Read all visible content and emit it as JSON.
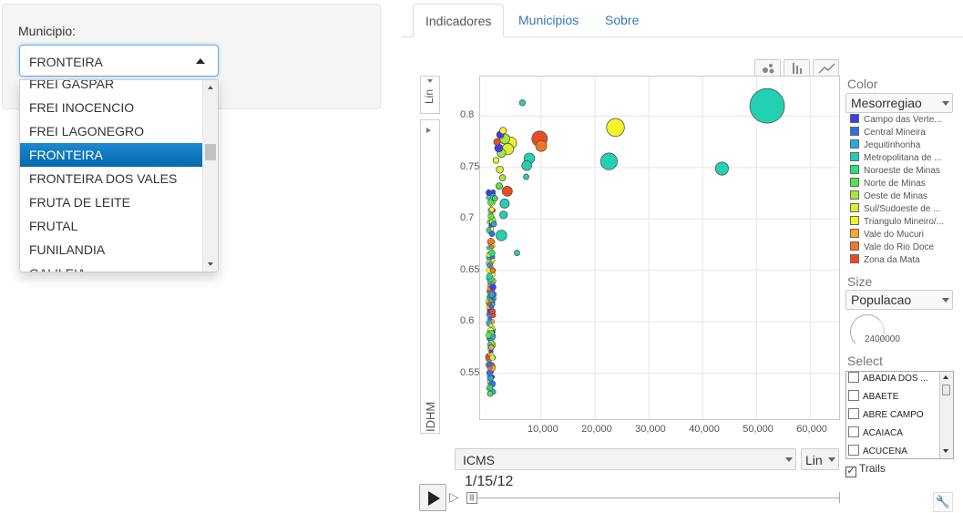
{
  "sidebar": {
    "label": "Municipio:",
    "selected": "FRONTEIRA",
    "options": [
      "FREI GASPAR",
      "FREI INOCENCIO",
      "FREI LAGONEGRO",
      "FRONTEIRA",
      "FRONTEIRA DOS VALES",
      "FRUTA DE LEITE",
      "FRUTAL",
      "FUNILANDIA",
      "GALILEIA"
    ],
    "selected_index": 3
  },
  "tabs": [
    {
      "label": "Indicadores",
      "active": true
    },
    {
      "label": "Municipios",
      "active": false
    },
    {
      "label": "Sobre",
      "active": false
    }
  ],
  "chart": {
    "y_scale_label": "Lin",
    "y_axis_label": "IDHM",
    "x_axis_selected": "ICMS",
    "x_scale_label": "Lin",
    "time_label": "1/15/12",
    "view_icons": [
      "bubble-view-icon",
      "bar-view-icon",
      "line-view-icon"
    ],
    "color_title": "Color",
    "color_selected": "Mesorregiao",
    "legend": [
      {
        "label": "Campo das Verte...",
        "color": "#3a3ef0"
      },
      {
        "label": "Central Mineira",
        "color": "#2f6fe8"
      },
      {
        "label": "Jequitinhonha",
        "color": "#27a9e6"
      },
      {
        "label": "Metropolitana de ...",
        "color": "#22d1b2"
      },
      {
        "label": "Noroeste de Minas",
        "color": "#2ae07a"
      },
      {
        "label": "Norte de Minas",
        "color": "#56e44a"
      },
      {
        "label": "Oeste de Minas",
        "color": "#a6e838"
      },
      {
        "label": "Sul/Sudoeste de ...",
        "color": "#d8ee36"
      },
      {
        "label": "Triangulo Mineiro/...",
        "color": "#f5f526"
      },
      {
        "label": "Vale do Mucuri",
        "color": "#f7a824"
      },
      {
        "label": "Vale do Rio Doce",
        "color": "#f2771e"
      },
      {
        "label": "Zona da Mata",
        "color": "#ee4a22"
      }
    ],
    "size_title": "Size",
    "size_selected": "Populacao",
    "size_value": "2400000",
    "select_title": "Select",
    "select_items": [
      "ABADIA DOS ...",
      "ABAETE",
      "ABRE CAMPO",
      "ACAIACA",
      "ACUCENA"
    ],
    "trails_label": "Trails",
    "trails_checked": true
  },
  "chart_data": {
    "type": "scatter",
    "xlabel": "ICMS",
    "ylabel": "IDHM",
    "xlim": [
      0,
      63000
    ],
    "ylim": [
      0.523,
      0.835
    ],
    "xticks": [
      "10,000",
      "20,000",
      "30,000",
      "40,000",
      "50,000",
      "60,000"
    ],
    "xtick_values": [
      10000,
      20000,
      30000,
      40000,
      50000,
      60000
    ],
    "yticks": [
      "0.8",
      "0.75",
      "0.7",
      "0.65",
      "0.6",
      "0.55"
    ],
    "ytick_values": [
      0.8,
      0.75,
      0.7,
      0.65,
      0.6,
      0.55
    ],
    "grid": true,
    "points": [
      {
        "x": 52000,
        "y": 0.81,
        "pop": 2400000,
        "region": "Metropolitana de ..."
      },
      {
        "x": 23800,
        "y": 0.789,
        "pop": 640000,
        "region": "Triangulo Mineiro/..."
      },
      {
        "x": 22600,
        "y": 0.756,
        "pop": 560000,
        "region": "Metropolitana de ..."
      },
      {
        "x": 43600,
        "y": 0.749,
        "pop": 340000,
        "region": "Metropolitana de ..."
      },
      {
        "x": 9700,
        "y": 0.778,
        "pop": 480000,
        "region": "Zona da Mata"
      },
      {
        "x": 10000,
        "y": 0.771,
        "pop": 240000,
        "region": "Vale do Rio Doce"
      },
      {
        "x": 6500,
        "y": 0.813,
        "pop": 70000,
        "region": "Metropolitana de ..."
      },
      {
        "x": 7800,
        "y": 0.759,
        "pop": 220000,
        "region": "Metropolitana de ..."
      },
      {
        "x": 7300,
        "y": 0.752,
        "pop": 190000,
        "region": "Metropolitana de ..."
      },
      {
        "x": 7200,
        "y": 0.741,
        "pop": 60000,
        "region": "Metropolitana de ..."
      },
      {
        "x": 4300,
        "y": 0.774,
        "pop": 290000,
        "region": "Triangulo Mineiro/..."
      },
      {
        "x": 3800,
        "y": 0.768,
        "pop": 260000,
        "region": "Sul/Sudoeste de ..."
      },
      {
        "x": 3200,
        "y": 0.778,
        "pop": 210000,
        "region": "Oeste de Minas"
      },
      {
        "x": 2900,
        "y": 0.786,
        "pop": 90000,
        "region": "Triangulo Mineiro/..."
      },
      {
        "x": 2600,
        "y": 0.764,
        "pop": 150000,
        "region": "Oeste de Minas"
      },
      {
        "x": 2400,
        "y": 0.782,
        "pop": 110000,
        "region": "Campo das Verte..."
      },
      {
        "x": 2100,
        "y": 0.769,
        "pop": 130000,
        "region": "Campo das Verte..."
      },
      {
        "x": 1800,
        "y": 0.775,
        "pop": 90000,
        "region": "Zona da Mata"
      },
      {
        "x": 3700,
        "y": 0.727,
        "pop": 200000,
        "region": "Zona da Mata"
      },
      {
        "x": 3200,
        "y": 0.715,
        "pop": 170000,
        "region": "Metropolitana de ..."
      },
      {
        "x": 3000,
        "y": 0.704,
        "pop": 120000,
        "region": "Metropolitana de ..."
      },
      {
        "x": 2600,
        "y": 0.684,
        "pop": 230000,
        "region": "Metropolitana de ..."
      },
      {
        "x": 5500,
        "y": 0.667,
        "pop": 20000,
        "region": "Metropolitana de ..."
      },
      {
        "x": 2800,
        "y": 0.74,
        "pop": 80000,
        "region": "Oeste de Minas"
      },
      {
        "x": 2300,
        "y": 0.748,
        "pop": 100000,
        "region": "Sul/Sudoeste de ..."
      },
      {
        "x": 2200,
        "y": 0.732,
        "pop": 90000,
        "region": "Norte de Minas"
      },
      {
        "x": 1600,
        "y": 0.757,
        "pop": 70000,
        "region": "Triangulo Mineiro/..."
      },
      {
        "x": 1400,
        "y": 0.72,
        "pop": 60000,
        "region": "Noroeste de Minas"
      },
      {
        "x": 1200,
        "y": 0.695,
        "pop": 50000,
        "region": "Jequitinhonha"
      },
      {
        "x": 1000,
        "y": 0.65,
        "pop": 40000,
        "region": "Vale do Rio Doce"
      },
      {
        "x": 900,
        "y": 0.61,
        "pop": 30000,
        "region": "Zona da Mata"
      },
      {
        "x": 700,
        "y": 0.575,
        "pop": 30000,
        "region": "Vale do Mucuri"
      },
      {
        "x": 600,
        "y": 0.545,
        "pop": 20000,
        "region": "Jequitinhonha"
      },
      {
        "x": 500,
        "y": 0.53,
        "pop": 15000,
        "region": "Norte de Minas"
      }
    ]
  }
}
